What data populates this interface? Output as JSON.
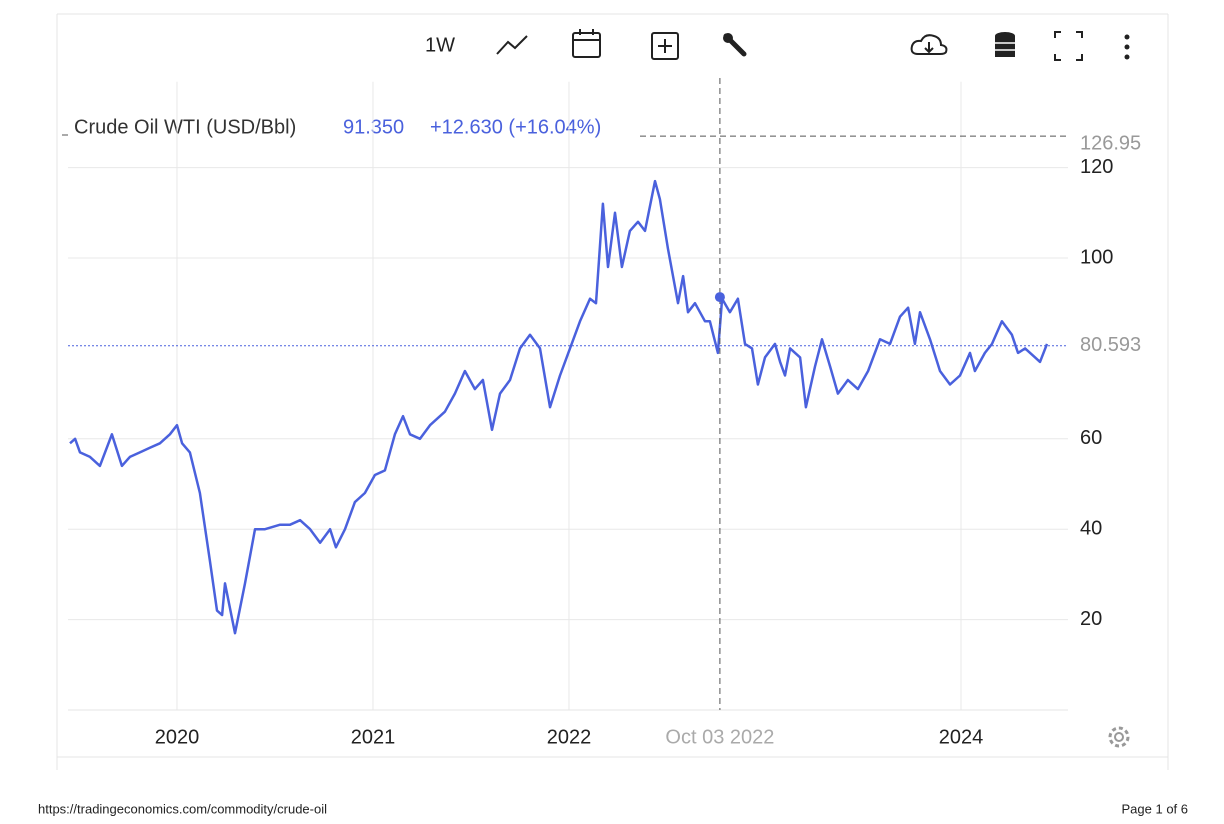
{
  "toolbar": {
    "interval": "1W"
  },
  "chart_data": {
    "type": "line",
    "title": "Crude Oil WTI (USD/Bbl)",
    "price": "91.350",
    "change": "+12.630 (+16.04%)",
    "color": "#4a61dd",
    "x": [
      2019.454,
      2019.48,
      2019.505,
      2019.556,
      2019.607,
      2019.668,
      2019.719,
      2019.76,
      2019.811,
      2019.862,
      2019.913,
      2019.964,
      2020.0,
      2020.026,
      2020.066,
      2020.117,
      2020.168,
      2020.204,
      2020.23,
      2020.245,
      2020.296,
      2020.347,
      2020.398,
      2020.449,
      2020.526,
      2020.577,
      2020.628,
      2020.679,
      2020.73,
      2020.781,
      2020.811,
      2020.857,
      2020.908,
      2020.959,
      2021.01,
      2021.061,
      2021.112,
      2021.153,
      2021.189,
      2021.24,
      2021.291,
      2021.367,
      2021.418,
      2021.469,
      2021.52,
      2021.561,
      2021.607,
      2021.648,
      2021.699,
      2021.75,
      2021.801,
      2021.852,
      2021.903,
      2021.954,
      2022.005,
      2022.056,
      2022.107,
      2022.138,
      2022.173,
      2022.199,
      2022.235,
      2022.27,
      2022.311,
      2022.352,
      2022.388,
      2022.439,
      2022.464,
      2022.505,
      2022.556,
      2022.582,
      2022.607,
      2022.643,
      2022.694,
      2022.719,
      2022.76,
      2022.781,
      2022.821,
      2022.862,
      2022.898,
      2022.934,
      2022.964,
      2023.0,
      2023.051,
      2023.077,
      2023.102,
      2023.128,
      2023.179,
      2023.209,
      2023.255,
      2023.291,
      2023.332,
      2023.372,
      2023.423,
      2023.474,
      2023.526,
      2023.587,
      2023.638,
      2023.689,
      2023.73,
      2023.765,
      2023.791,
      2023.842,
      2023.893,
      2023.944,
      2023.995,
      2024.046,
      2024.071,
      2024.122,
      2024.158,
      2024.209,
      2024.26,
      2024.291,
      2024.327,
      2024.378,
      2024.403,
      2024.439
    ],
    "values": [
      59,
      60,
      57,
      56,
      54,
      61,
      54,
      56,
      57,
      58,
      59,
      61,
      63,
      59,
      57,
      48,
      33,
      22,
      21,
      28,
      17,
      28,
      40,
      40,
      41,
      41,
      42,
      40,
      37,
      40,
      36,
      40,
      46,
      48,
      52,
      53,
      61,
      65,
      61,
      60,
      63,
      66,
      70,
      75,
      71,
      73,
      62,
      70,
      73,
      80,
      83,
      80,
      67,
      74,
      80,
      86,
      91,
      90,
      112,
      98,
      110,
      98,
      106,
      108,
      106,
      117,
      113,
      102,
      90,
      96,
      88,
      90,
      86,
      86,
      79,
      91,
      88,
      91,
      81,
      80,
      72,
      78,
      81,
      77,
      74,
      80,
      78,
      67,
      76,
      82,
      76,
      70,
      73,
      71,
      75,
      82,
      81,
      87,
      89,
      81,
      88,
      82,
      75,
      72,
      74,
      79,
      75,
      79,
      81,
      86,
      83,
      79,
      80,
      78,
      77,
      81
    ],
    "xlim": [
      2019.444,
      2024.546
    ],
    "ylim": [
      0,
      139
    ],
    "xticks": [
      2020,
      2021,
      2022,
      2024
    ],
    "yticks": [
      20,
      40,
      60,
      100,
      120
    ],
    "grid": true,
    "last_price": 80.593,
    "crosshair": {
      "x": 2022.77,
      "label": "Oct 03 2022",
      "value": 91.35,
      "y": 126.95
    }
  },
  "footer": {
    "url": "https://tradingeconomics.com/commodity/crude-oil",
    "page": "Page 1 of 6"
  }
}
